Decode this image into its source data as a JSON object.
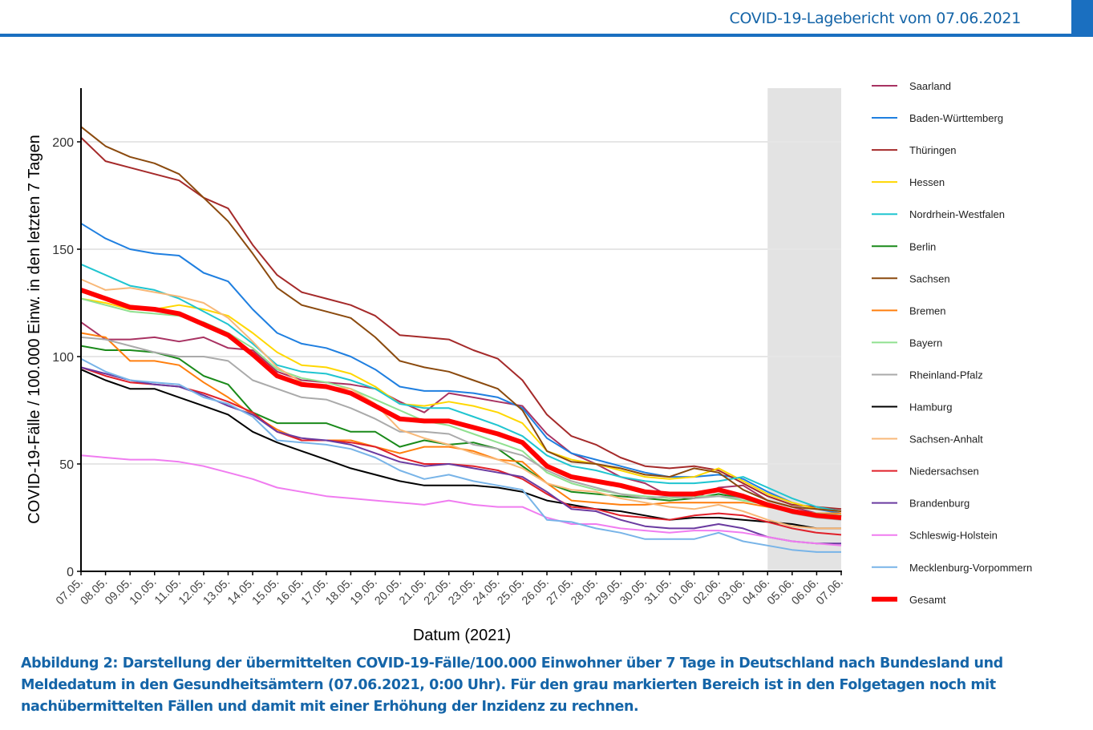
{
  "header": {
    "title": "COVID-19-Lagebericht vom 07.06.2021"
  },
  "caption": "Abbildung 2: Darstellung der übermittelten COVID-19-Fälle/100.000 Einwohner über 7 Tage in Deutschland nach Bundesland und Meldedatum in den Gesundheitsämtern (07.06.2021, 0:00 Uhr). Für den grau markierten Bereich ist in den Folgetagen noch mit nachübermittelten Fällen und damit mit einer Erhöhung der Inzidenz zu rechnen.",
  "chart_data": {
    "type": "line",
    "xlabel": "Datum (2021)",
    "ylabel": "COVID-19-Fälle / 100.000 Einw. in den letzten 7 Tagen",
    "ylim": [
      0,
      225
    ],
    "yticks": [
      0,
      50,
      100,
      150,
      200
    ],
    "grid": true,
    "legend_position": "right",
    "shaded_region": {
      "from": "04.06.",
      "to": "07.06.",
      "color": "#e3e3e3"
    },
    "x": [
      "07.05.",
      "08.05.",
      "09.05.",
      "10.05.",
      "11.05.",
      "12.05.",
      "13.05.",
      "14.05.",
      "15.05.",
      "16.05.",
      "17.05.",
      "18.05.",
      "19.05.",
      "20.05.",
      "21.05.",
      "22.05.",
      "23.05.",
      "24.05.",
      "25.05.",
      "26.05.",
      "27.05.",
      "28.05.",
      "29.05.",
      "30.05.",
      "31.05.",
      "01.06.",
      "02.06.",
      "03.06.",
      "04.06.",
      "05.06.",
      "06.06.",
      "07.06."
    ],
    "series": [
      {
        "name": "Saarland",
        "color": "#a83262",
        "values": [
          116,
          108,
          108,
          109,
          107,
          109,
          104,
          103,
          93,
          89,
          88,
          87,
          85,
          79,
          74,
          83,
          81,
          79,
          77,
          64,
          55,
          50,
          44,
          41,
          35,
          34,
          39,
          40,
          33,
          30,
          27,
          26
        ]
      },
      {
        "name": "Baden-Württemberg",
        "color": "#1f7fe0",
        "values": [
          162,
          155,
          150,
          148,
          147,
          139,
          135,
          122,
          111,
          106,
          104,
          100,
          94,
          86,
          84,
          84,
          83,
          81,
          76,
          62,
          55,
          52,
          49,
          46,
          44,
          44,
          45,
          43,
          37,
          32,
          29,
          27
        ]
      },
      {
        "name": "Thüringen",
        "color": "#a52a2a",
        "values": [
          202,
          191,
          188,
          185,
          182,
          174,
          169,
          152,
          138,
          130,
          127,
          124,
          119,
          110,
          109,
          108,
          103,
          99,
          89,
          73,
          63,
          59,
          53,
          49,
          48,
          49,
          47,
          41,
          35,
          31,
          30,
          29
        ]
      },
      {
        "name": "Hessen",
        "color": "#ffd700",
        "values": [
          127,
          125,
          122,
          122,
          124,
          122,
          119,
          111,
          102,
          96,
          95,
          92,
          86,
          78,
          77,
          79,
          77,
          74,
          69,
          56,
          52,
          50,
          47,
          44,
          43,
          44,
          48,
          42,
          36,
          32,
          29,
          28
        ]
      },
      {
        "name": "Nordrhein-Westfalen",
        "color": "#20c5d0",
        "values": [
          143,
          138,
          133,
          131,
          127,
          121,
          115,
          106,
          96,
          93,
          92,
          89,
          85,
          78,
          76,
          76,
          72,
          68,
          63,
          54,
          49,
          47,
          44,
          42,
          41,
          41,
          42,
          44,
          39,
          34,
          30,
          28
        ]
      },
      {
        "name": "Berlin",
        "color": "#1a8a1a",
        "values": [
          105,
          103,
          103,
          102,
          99,
          91,
          87,
          74,
          69,
          69,
          69,
          65,
          65,
          58,
          61,
          59,
          60,
          57,
          49,
          41,
          37,
          36,
          35,
          34,
          33,
          34,
          36,
          34,
          31,
          28,
          26,
          26
        ]
      },
      {
        "name": "Sachsen",
        "color": "#8b4a0e",
        "values": [
          207,
          198,
          193,
          190,
          185,
          174,
          163,
          148,
          132,
          124,
          121,
          118,
          109,
          98,
          95,
          93,
          89,
          85,
          75,
          56,
          51,
          50,
          48,
          45,
          44,
          48,
          46,
          38,
          33,
          30,
          29,
          28
        ]
      },
      {
        "name": "Bremen",
        "color": "#ff7f0e",
        "values": [
          111,
          109,
          98,
          98,
          96,
          88,
          81,
          73,
          66,
          61,
          61,
          61,
          58,
          55,
          58,
          58,
          56,
          52,
          51,
          41,
          33,
          32,
          31,
          31,
          32,
          32,
          32,
          32,
          30,
          28,
          27,
          27
        ]
      },
      {
        "name": "Bayern",
        "color": "#90e090",
        "values": [
          127,
          124,
          121,
          120,
          119,
          116,
          111,
          104,
          94,
          90,
          88,
          85,
          80,
          75,
          70,
          68,
          64,
          60,
          56,
          46,
          41,
          38,
          36,
          35,
          34,
          35,
          35,
          33,
          31,
          28,
          27,
          26
        ]
      },
      {
        "name": "Rheinland-Pfalz",
        "color": "#aaaaaa",
        "values": [
          109,
          108,
          105,
          102,
          100,
          100,
          98,
          89,
          85,
          81,
          80,
          76,
          71,
          65,
          65,
          64,
          59,
          57,
          54,
          47,
          42,
          39,
          36,
          34,
          35,
          34,
          35,
          34,
          31,
          27,
          25,
          24
        ]
      },
      {
        "name": "Hamburg",
        "color": "#000000",
        "values": [
          94,
          89,
          85,
          85,
          81,
          77,
          73,
          65,
          60,
          56,
          52,
          48,
          45,
          42,
          40,
          40,
          40,
          39,
          37,
          33,
          31,
          29,
          28,
          26,
          24,
          25,
          25,
          24,
          23,
          22,
          20,
          20
        ]
      },
      {
        "name": "Sachsen-Anhalt",
        "color": "#f8b878",
        "values": [
          136,
          131,
          132,
          130,
          128,
          125,
          118,
          107,
          95,
          88,
          86,
          85,
          78,
          66,
          62,
          59,
          55,
          52,
          48,
          41,
          38,
          37,
          34,
          32,
          30,
          29,
          31,
          28,
          24,
          21,
          20,
          20
        ]
      },
      {
        "name": "Niedersachsen",
        "color": "#e0202a",
        "values": [
          95,
          91,
          88,
          87,
          86,
          83,
          79,
          74,
          65,
          61,
          61,
          60,
          58,
          53,
          50,
          50,
          49,
          47,
          43,
          36,
          30,
          29,
          26,
          25,
          24,
          26,
          27,
          26,
          23,
          20,
          18,
          17
        ]
      },
      {
        "name": "Brandenburg",
        "color": "#6a3aa0",
        "values": [
          95,
          92,
          89,
          87,
          86,
          82,
          77,
          73,
          65,
          62,
          61,
          59,
          55,
          51,
          49,
          50,
          48,
          46,
          44,
          37,
          29,
          28,
          24,
          21,
          20,
          20,
          22,
          20,
          16,
          14,
          13,
          13
        ]
      },
      {
        "name": "Schleswig-Holstein",
        "color": "#f07cf0",
        "values": [
          54,
          53,
          52,
          52,
          51,
          49,
          46,
          43,
          39,
          37,
          35,
          34,
          33,
          32,
          31,
          33,
          31,
          30,
          30,
          25,
          22,
          22,
          20,
          19,
          18,
          19,
          19,
          18,
          16,
          14,
          13,
          12
        ]
      },
      {
        "name": "Mecklenburg-Vorpommern",
        "color": "#78b4e8",
        "values": [
          99,
          93,
          89,
          88,
          87,
          81,
          78,
          72,
          61,
          60,
          59,
          57,
          53,
          47,
          43,
          45,
          42,
          40,
          38,
          24,
          23,
          20,
          18,
          15,
          15,
          15,
          18,
          14,
          12,
          10,
          9,
          9
        ]
      },
      {
        "name": "Gesamt",
        "color": "#ff0000",
        "bold": true,
        "values": [
          131,
          127,
          123,
          122,
          120,
          115,
          110,
          101,
          91,
          87,
          86,
          83,
          77,
          71,
          70,
          70,
          67,
          64,
          60,
          49,
          44,
          42,
          40,
          37,
          36,
          36,
          38,
          35,
          31,
          28,
          26,
          25
        ]
      }
    ]
  }
}
